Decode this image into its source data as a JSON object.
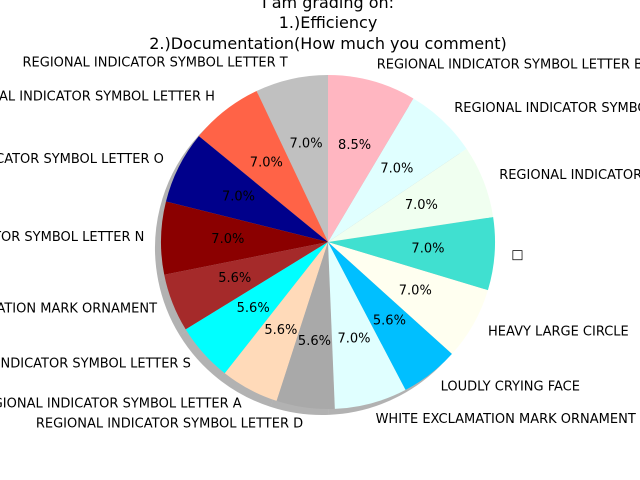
{
  "chart_data": {
    "type": "pie",
    "title_lines": [
      "I am grading on:",
      "1.)Efficiency",
      "2.)Documentation(How much you comment)"
    ],
    "slices": [
      {
        "label": "REGIONAL INDICATOR SYMBOL LETTER T",
        "value": 7.0,
        "pct_label": "7.0%",
        "color": "#c0c0c0"
      },
      {
        "label": "REGIONAL INDICATOR SYMBOL LETTER H",
        "value": 7.0,
        "pct_label": "7.0%",
        "color": "#ff6347"
      },
      {
        "label": "REGIONAL INDICATOR SYMBOL LETTER O",
        "value": 7.0,
        "pct_label": "7.0%",
        "color": "#00008b"
      },
      {
        "label": "REGIONAL INDICATOR SYMBOL LETTER N",
        "value": 7.0,
        "pct_label": "7.0%",
        "color": "#8b0000"
      },
      {
        "label": "HEAVY EXCLAMATION MARK ORNAMENT",
        "value": 5.6,
        "pct_label": "5.6%",
        "color": "#a52a2a"
      },
      {
        "label": "REGIONAL INDICATOR SYMBOL LETTER S",
        "value": 5.6,
        "pct_label": "5.6%",
        "color": "#00ffff"
      },
      {
        "label": "REGIONAL INDICATOR SYMBOL LETTER A",
        "value": 5.6,
        "pct_label": "5.6%",
        "color": "#ffdab9"
      },
      {
        "label": "REGIONAL INDICATOR SYMBOL LETTER D",
        "value": 5.6,
        "pct_label": "5.6%",
        "color": "#a9a9a9"
      },
      {
        "label": "WHITE EXCLAMATION MARK ORNAMENT",
        "value": 7.0,
        "pct_label": "7.0%",
        "color": "#e0ffff"
      },
      {
        "label": "LOUDLY CRYING FACE",
        "value": 5.6,
        "pct_label": "5.6%",
        "color": "#00bfff"
      },
      {
        "label": "HEAVY LARGE CIRCLE",
        "value": 7.0,
        "pct_label": "7.0%",
        "color": "#fffff0"
      },
      {
        "label": "□",
        "value": 7.0,
        "pct_label": "7.0%",
        "color": "#40e0d0"
      },
      {
        "label": "REGIONAL INDICATOR SYMBOL LETTER E",
        "value": 7.0,
        "pct_label": "7.0%",
        "color": "#f0fff0"
      },
      {
        "label": "REGIONAL INDICATOR SYMBOL LETTER R",
        "value": 7.0,
        "pct_label": "7.0%",
        "color": "#e0ffff"
      },
      {
        "label": "REGIONAL INDICATOR SYMBOL LETTER B",
        "value": 8.5,
        "pct_label": "8.5%",
        "color": "#ffb6c1"
      }
    ],
    "start_angle_deg": 90,
    "direction": "counterclockwise",
    "shadow": true
  }
}
